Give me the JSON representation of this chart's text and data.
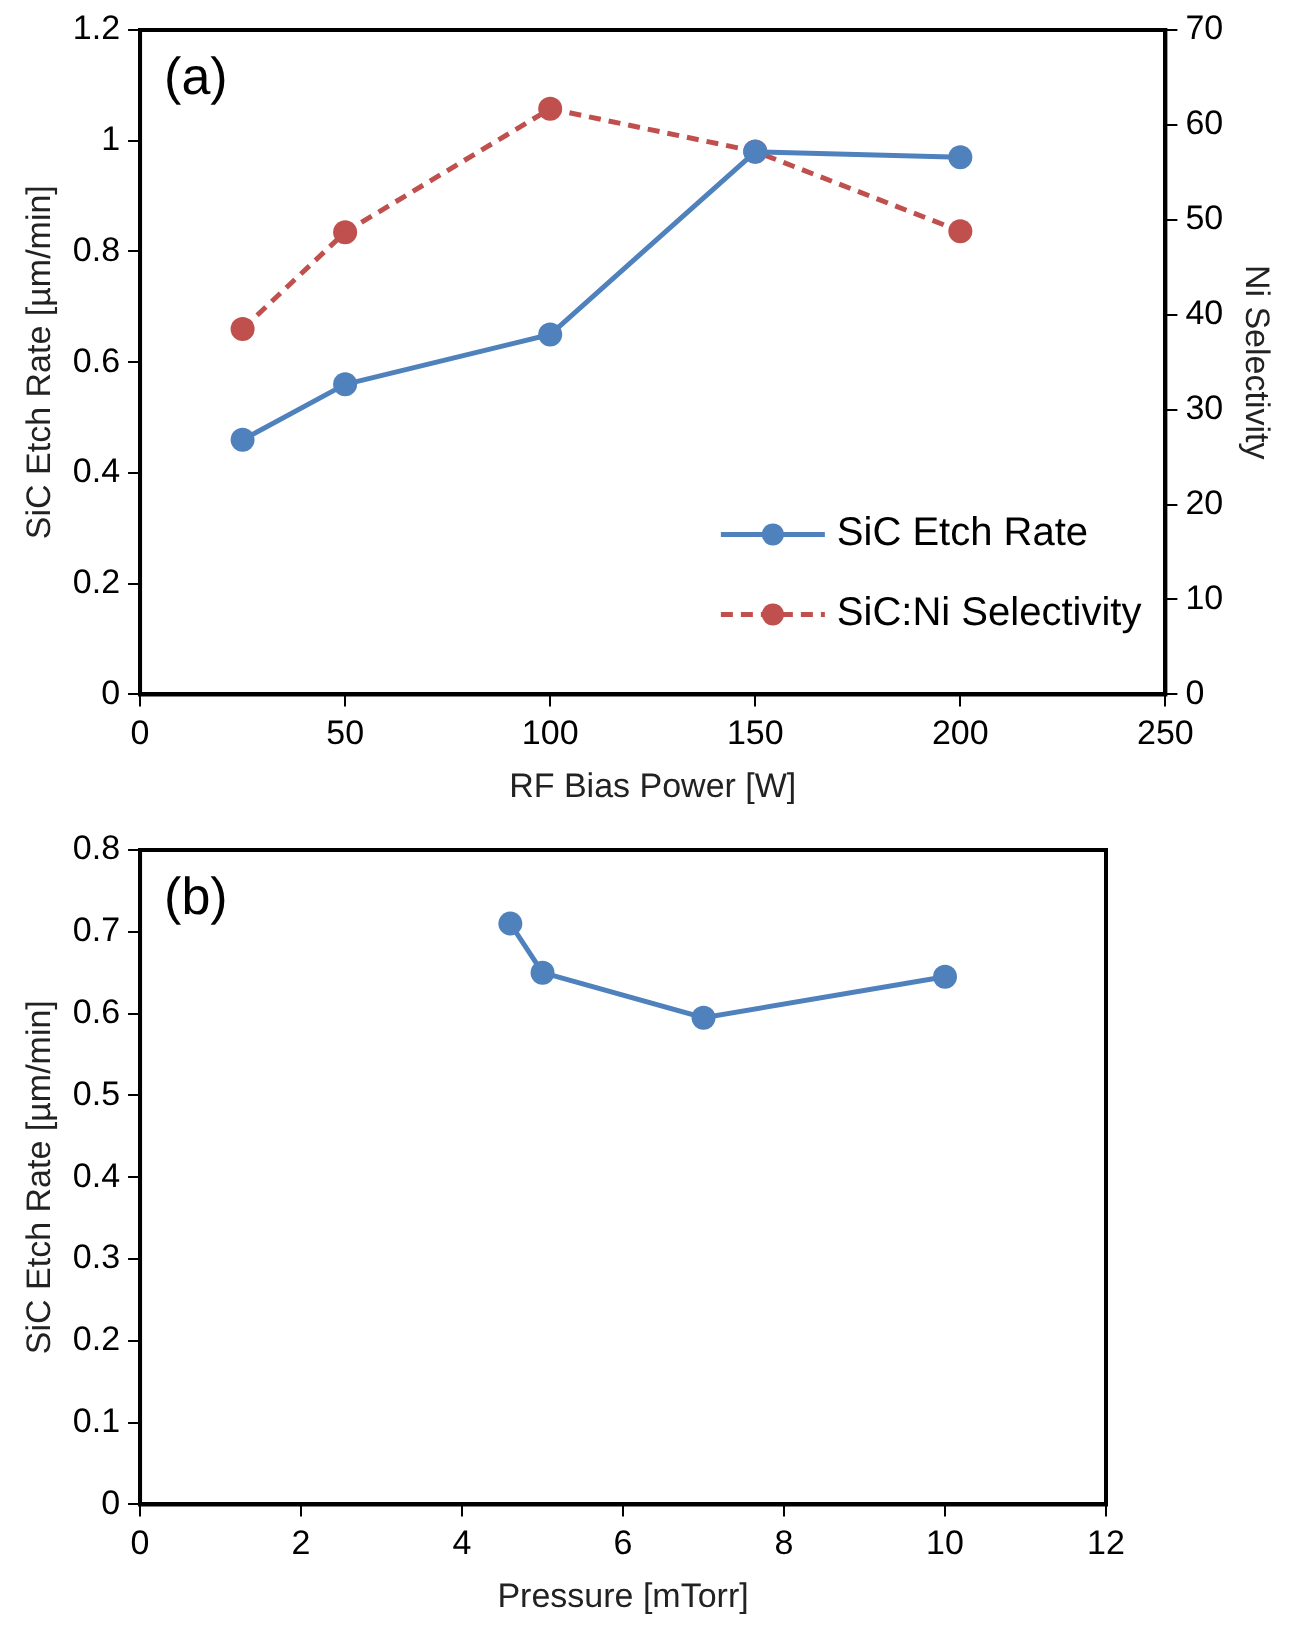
{
  "chart_data": [
    {
      "type": "line",
      "xlabel": "RF Bias Power [W]",
      "ylabel": "SiC Etch Rate [µm/min]",
      "y2label": "Ni Selectivity",
      "annotations": [
        "(a)"
      ],
      "x": [
        25,
        50,
        100,
        150,
        200
      ],
      "xlim": [
        0,
        250
      ],
      "xticks": [
        0,
        50,
        100,
        150,
        200,
        250
      ],
      "ylim": [
        0,
        1.2
      ],
      "yticks": [
        0,
        0.2,
        0.4,
        0.6,
        0.8,
        1,
        1.2
      ],
      "y2lim": [
        0,
        70
      ],
      "y2ticks": [
        0,
        10,
        20,
        30,
        40,
        50,
        60,
        70
      ],
      "marker": "circle",
      "legend": "bottom right",
      "series": [
        {
          "name": "SiC Etch Rate",
          "color": "#4f81bd",
          "values": [
            0.46,
            0.56,
            0.65,
            0.98,
            0.97
          ]
        },
        {
          "name": "SiC:Ni Selectivity",
          "color": "#c0504d",
          "line_style": "dashed",
          "axis": "y2",
          "values": [
            38.5,
            48.7,
            61.7,
            57.2,
            48.8
          ]
        }
      ]
    },
    {
      "type": "line",
      "xlabel": "Pressure [mTorr]",
      "ylabel": "SiC Etch Rate [µm/min]",
      "annotations": [
        "(b)"
      ],
      "x": [
        4.6,
        5,
        7,
        10
      ],
      "xlim": [
        0,
        12
      ],
      "xticks": [
        0,
        2,
        4,
        6,
        8,
        10,
        12
      ],
      "ylim": [
        0,
        0.8
      ],
      "yticks": [
        0,
        0.1,
        0.2,
        0.3,
        0.4,
        0.5,
        0.6,
        0.7,
        0.8
      ],
      "marker": "circle",
      "series": [
        {
          "color": "#4f81bd",
          "values": [
            0.71,
            0.65,
            0.595,
            0.645
          ]
        }
      ]
    }
  ]
}
